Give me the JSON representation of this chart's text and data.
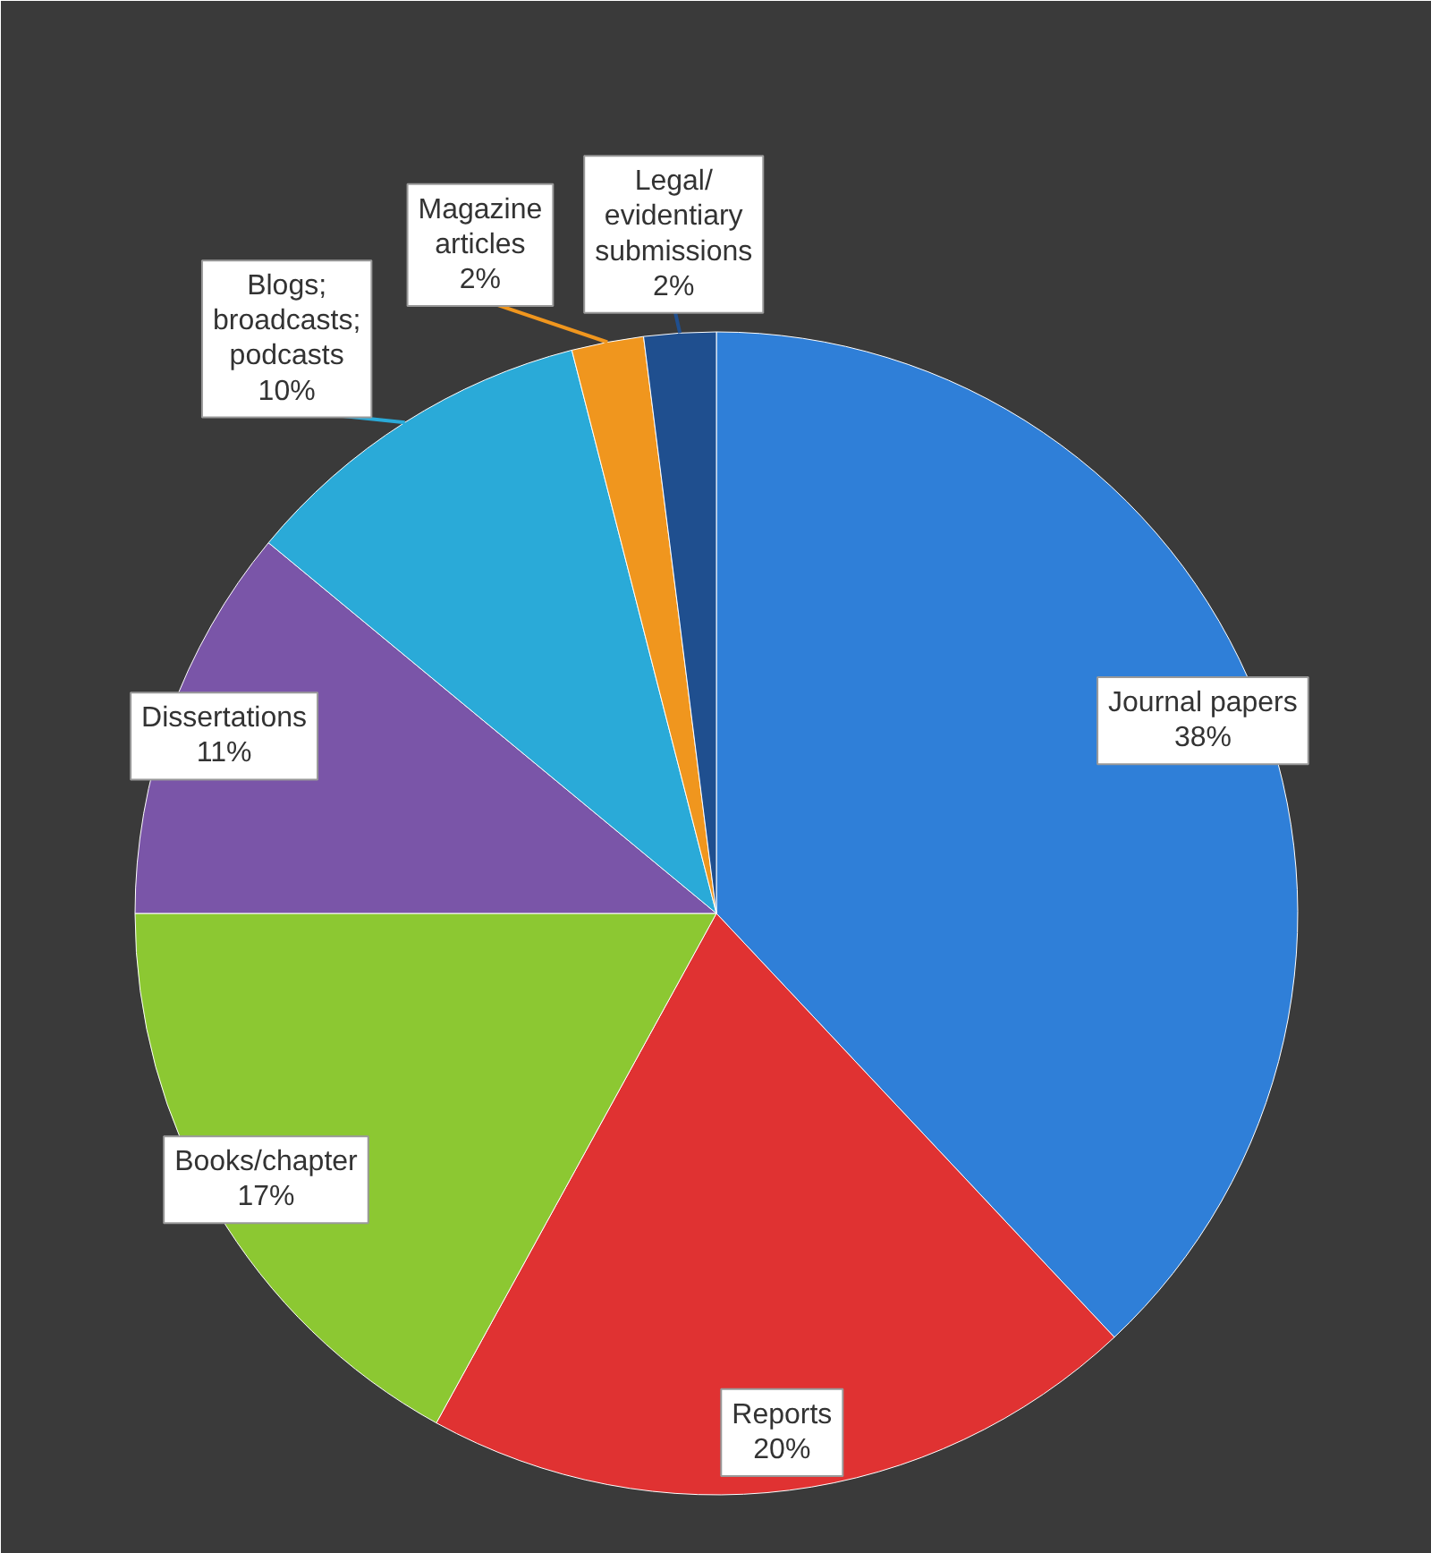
{
  "chart_data": {
    "type": "pie",
    "categories": [
      "Journal papers",
      "Reports",
      "Books/chapter",
      "Dissertations",
      "Blogs;\nbroadcasts;\npodcasts",
      "Magazine\narticles",
      "Legal/\nevidentiary\nsubmissions"
    ],
    "values": [
      38,
      20,
      17,
      11,
      10,
      2,
      2
    ],
    "colors": [
      "#2f7fd8",
      "#e03232",
      "#8cc832",
      "#7a55a8",
      "#2aaad8",
      "#f0961e",
      "#1f4f8f"
    ],
    "value_labels": [
      "38%",
      "20%",
      "17%",
      "11%",
      "10%",
      "2%",
      "2%"
    ],
    "legend": false
  }
}
